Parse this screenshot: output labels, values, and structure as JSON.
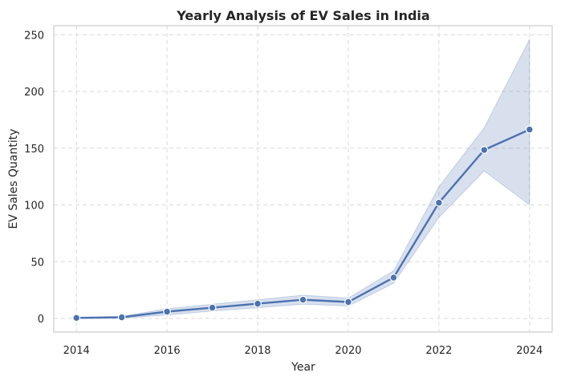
{
  "chart_data": {
    "type": "line",
    "title": "Yearly Analysis of EV Sales in India",
    "xlabel": "Year",
    "ylabel": "EV Sales Quantity",
    "x": [
      2014,
      2015,
      2016,
      2017,
      2018,
      2019,
      2020,
      2021,
      2022,
      2023,
      2024
    ],
    "series": [
      {
        "values": [
          0.5,
          1,
          6,
          9.5,
          13,
          16.5,
          14.5,
          36,
          102,
          148.5,
          166.5
        ],
        "ci_lower": [
          0,
          0.3,
          3,
          6.5,
          9.5,
          12.5,
          11,
          31,
          89,
          130,
          100
        ],
        "ci_upper": [
          1,
          2,
          8.5,
          12.5,
          16.5,
          20.5,
          18,
          42,
          116,
          168,
          246
        ],
        "color": "#4c72b0"
      }
    ],
    "xlim": [
      2013.5,
      2024.5
    ],
    "ylim": [
      -12,
      258
    ],
    "x_ticks": [
      "2014",
      "2016",
      "2018",
      "2020",
      "2022",
      "2024"
    ],
    "y_ticks": [
      "0",
      "50",
      "100",
      "150",
      "200",
      "250"
    ],
    "grid": true,
    "grid_style": "dashed",
    "band_color": "#4c72b0",
    "marker": "circle"
  }
}
